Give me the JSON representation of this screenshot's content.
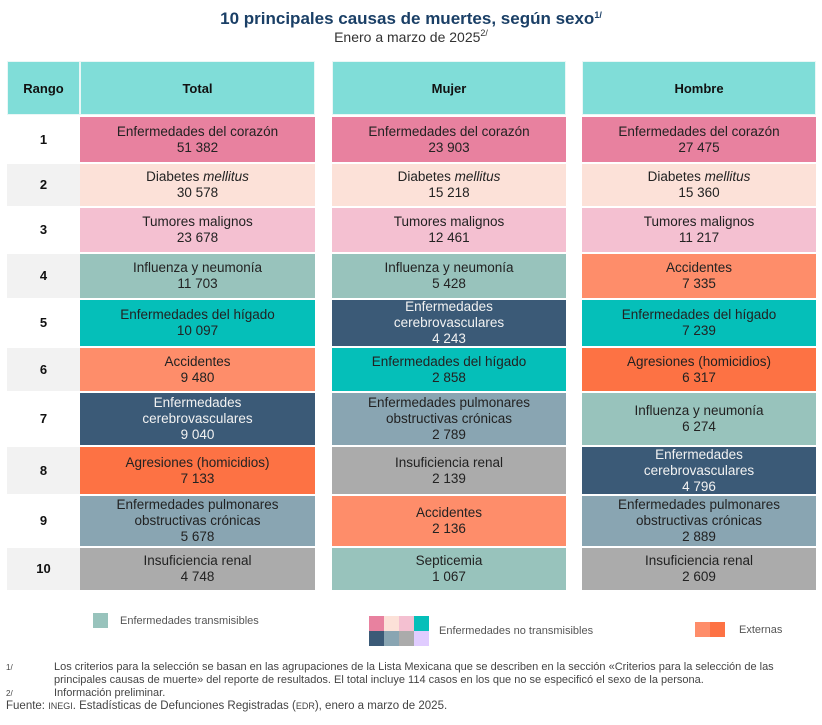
{
  "chart_data": {
    "type": "table",
    "title": "10 principales causas de muertes, según sexo",
    "title_note": "1/",
    "subtitle": "Enero a marzo de 2025",
    "subtitle_note": "2/",
    "columns": [
      "Rango",
      "Total",
      "Mujer",
      "Hombre"
    ],
    "ranks": [
      "1",
      "2",
      "3",
      "4",
      "5",
      "6",
      "7",
      "8",
      "9",
      "10"
    ],
    "categories_colors": {
      "corazon": "#e8819f",
      "diabetes": "#fce1d8",
      "tumores": "#f4c0d1",
      "influenza": "#98c3bc",
      "higado": "#05bfb9",
      "accidentes": "#fe8d6a",
      "cerebro": "#3b5a77",
      "agresiones": "#fd7244",
      "pulmonares": "#89a5b2",
      "renal": "#ababab",
      "septicemia": "#98c3bc"
    },
    "series": [
      {
        "name": "Total",
        "rows": [
          {
            "cause": "Enfermedades del corazón",
            "value": "51 382",
            "key": "corazon"
          },
          {
            "cause": "Diabetes",
            "cause_italic": "mellitus",
            "value": "30 578",
            "key": "diabetes"
          },
          {
            "cause": "Tumores malignos",
            "value": "23 678",
            "key": "tumores"
          },
          {
            "cause": "Influenza y neumonía",
            "value": "11 703",
            "key": "influenza"
          },
          {
            "cause": "Enfermedades del hígado",
            "value": "10 097",
            "key": "higado"
          },
          {
            "cause": "Accidentes",
            "value": "9 480",
            "key": "accidentes"
          },
          {
            "cause": "Enfermedades cerebrovasculares",
            "value": "9 040",
            "key": "cerebro"
          },
          {
            "cause": "Agresiones (homicidios)",
            "value": "7 133",
            "key": "agresiones"
          },
          {
            "cause": "Enfermedades pulmonares obstructivas crónicas",
            "value": "5 678",
            "key": "pulmonares"
          },
          {
            "cause": "Insuficiencia renal",
            "value": "4 748",
            "key": "renal"
          }
        ]
      },
      {
        "name": "Mujer",
        "rows": [
          {
            "cause": "Enfermedades del corazón",
            "value": "23 903",
            "key": "corazon"
          },
          {
            "cause": "Diabetes",
            "cause_italic": "mellitus",
            "value": "15 218",
            "key": "diabetes"
          },
          {
            "cause": "Tumores malignos",
            "value": "12 461",
            "key": "tumores"
          },
          {
            "cause": "Influenza y neumonía",
            "value": "5 428",
            "key": "influenza"
          },
          {
            "cause": "Enfermedades cerebrovasculares",
            "value": "4 243",
            "key": "cerebro"
          },
          {
            "cause": "Enfermedades del hígado",
            "value": "2 858",
            "key": "higado"
          },
          {
            "cause": "Enfermedades pulmonares obstructivas crónicas",
            "value": "2 789",
            "key": "pulmonares"
          },
          {
            "cause": "Insuficiencia renal",
            "value": "2 139",
            "key": "renal"
          },
          {
            "cause": "Accidentes",
            "value": "2 136",
            "key": "accidentes"
          },
          {
            "cause": "Septicemia",
            "value": "1 067",
            "key": "septicemia"
          }
        ]
      },
      {
        "name": "Hombre",
        "rows": [
          {
            "cause": "Enfermedades del corazón",
            "value": "27 475",
            "key": "corazon"
          },
          {
            "cause": "Diabetes",
            "cause_italic": "mellitus",
            "value": "15 360",
            "key": "diabetes"
          },
          {
            "cause": "Tumores malignos",
            "value": "11 217",
            "key": "tumores"
          },
          {
            "cause": "Accidentes",
            "value": "7 335",
            "key": "accidentes"
          },
          {
            "cause": "Enfermedades del hígado",
            "value": "7 239",
            "key": "higado"
          },
          {
            "cause": "Agresiones (homicidios)",
            "value": "6 317",
            "key": "agresiones"
          },
          {
            "cause": "Influenza y neumonía",
            "value": "6 274",
            "key": "influenza"
          },
          {
            "cause": "Enfermedades cerebrovasculares",
            "value": "4 796",
            "key": "cerebro"
          },
          {
            "cause": "Enfermedades pulmonares obstructivas crónicas",
            "value": "2 889",
            "key": "pulmonares"
          },
          {
            "cause": "Insuficiencia renal",
            "value": "2 609",
            "key": "renal"
          }
        ]
      }
    ],
    "legend": [
      {
        "label": "Enfermedades transmisibles",
        "colors": [
          "#98c3bc"
        ]
      },
      {
        "label": "Enfermedades no transmisibles",
        "colors": [
          "#e8819f",
          "#fce1d8",
          "#f4c0d1",
          "#05bfb9",
          "#3b5a77",
          "#89a5b2",
          "#ababab",
          "#e0ccff"
        ]
      },
      {
        "label": "Externas",
        "colors": [
          "#fe8d6a",
          "#fd7244"
        ]
      }
    ]
  },
  "header_color": "#80ddd8",
  "title_color": "#1a3f66",
  "notes": [
    {
      "mark": "1/",
      "text": "Los criterios para la selección se basan en las agrupaciones de la Lista Mexicana que se describen en la sección «Criterios para la selección de las principales causas de muerte» del reporte de resultados. El total incluye 114 casos en los que no se especificó el sexo de la persona."
    },
    {
      "mark": "2/",
      "text": "Información preliminar."
    }
  ],
  "source": {
    "label": "Fuente:",
    "org": "INEGI",
    "text": ". Estadísticas de Defunciones Registradas (",
    "abbr": "EDR",
    "tail": "), enero a marzo de 2025."
  }
}
